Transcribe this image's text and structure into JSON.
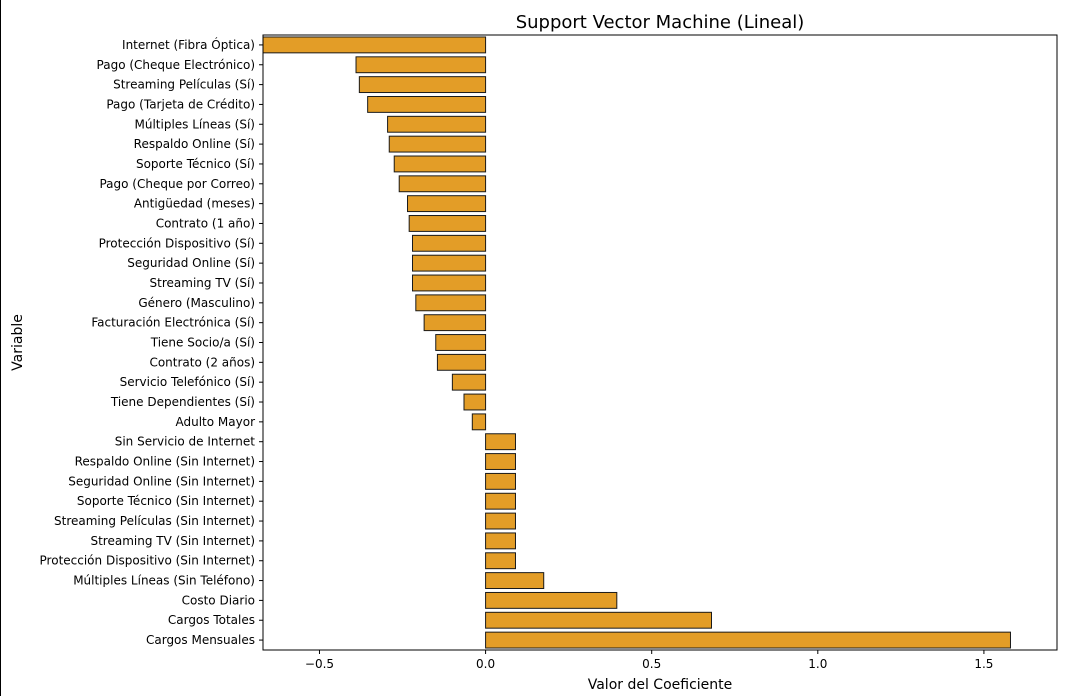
{
  "chart_data": {
    "type": "bar",
    "orientation": "horizontal",
    "title": "Support Vector Machine (Lineal)",
    "xlabel": "Valor del Coeficiente",
    "ylabel": "Variable",
    "xlim": [
      -0.67,
      1.72
    ],
    "xticks": [
      -0.5,
      0.0,
      0.5,
      1.0,
      1.5
    ],
    "xtick_labels": [
      "−0.5",
      "0.0",
      "0.5",
      "1.0",
      "1.5"
    ],
    "grid": false,
    "bar_color": "#e39d27",
    "edge_color": "#1a1a1a",
    "categories": [
      "Internet (Fibra Óptica)",
      "Pago (Cheque Electrónico)",
      "Streaming Películas (Sí)",
      "Pago (Tarjeta de Crédito)",
      "Múltiples Líneas (Sí)",
      "Respaldo Online (Sí)",
      "Soporte Técnico (Sí)",
      "Pago (Cheque por Correo)",
      "Antigüedad (meses)",
      "Contrato (1 año)",
      "Protección Dispositivo (Sí)",
      "Seguridad Online (Sí)",
      "Streaming TV (Sí)",
      "Género (Masculino)",
      "Facturación Electrónica (Sí)",
      "Tiene Socio/a (Sí)",
      "Contrato (2 años)",
      "Servicio Telefónico (Sí)",
      "Tiene Dependientes (Sí)",
      "Adulto Mayor",
      "Sin Servicio de Internet",
      "Respaldo Online (Sin Internet)",
      "Seguridad Online (Sin Internet)",
      "Soporte Técnico (Sin Internet)",
      "Streaming Películas (Sin Internet)",
      "Streaming TV (Sin Internet)",
      "Protección Dispositivo (Sin Internet)",
      "Múltiples Líneas (Sin Teléfono)",
      "Costo Diario",
      "Cargos Totales",
      "Cargos Mensuales"
    ],
    "values": [
      -0.67,
      -0.39,
      -0.38,
      -0.355,
      -0.295,
      -0.29,
      -0.275,
      -0.26,
      -0.235,
      -0.23,
      -0.22,
      -0.22,
      -0.22,
      -0.21,
      -0.185,
      -0.15,
      -0.145,
      -0.1,
      -0.065,
      -0.04,
      0.09,
      0.09,
      0.09,
      0.09,
      0.09,
      0.09,
      0.09,
      0.175,
      0.395,
      0.68,
      1.58
    ]
  }
}
